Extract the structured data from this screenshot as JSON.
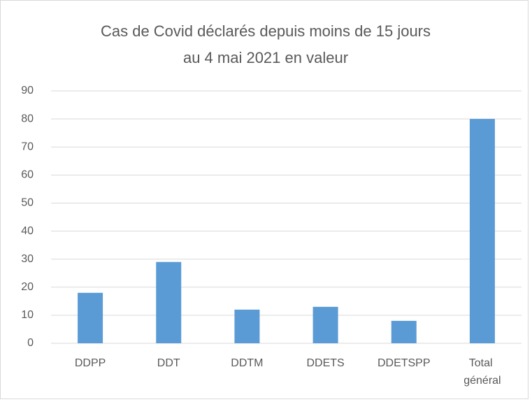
{
  "chart_data": {
    "type": "bar",
    "title": [
      "Cas de Covid déclarés depuis moins de 15 jours",
      "au 4 mai 2021 en valeur"
    ],
    "categories": [
      "DDPP",
      "DDT",
      "DDTM",
      "DDETS",
      "DDETSPP",
      "Total général"
    ],
    "values": [
      18,
      29,
      12,
      13,
      8,
      80
    ],
    "color": "#5b9bd5",
    "ylim": [
      0,
      90
    ],
    "yticks": [
      0,
      10,
      20,
      30,
      40,
      50,
      60,
      70,
      80,
      90
    ],
    "grid": true
  }
}
